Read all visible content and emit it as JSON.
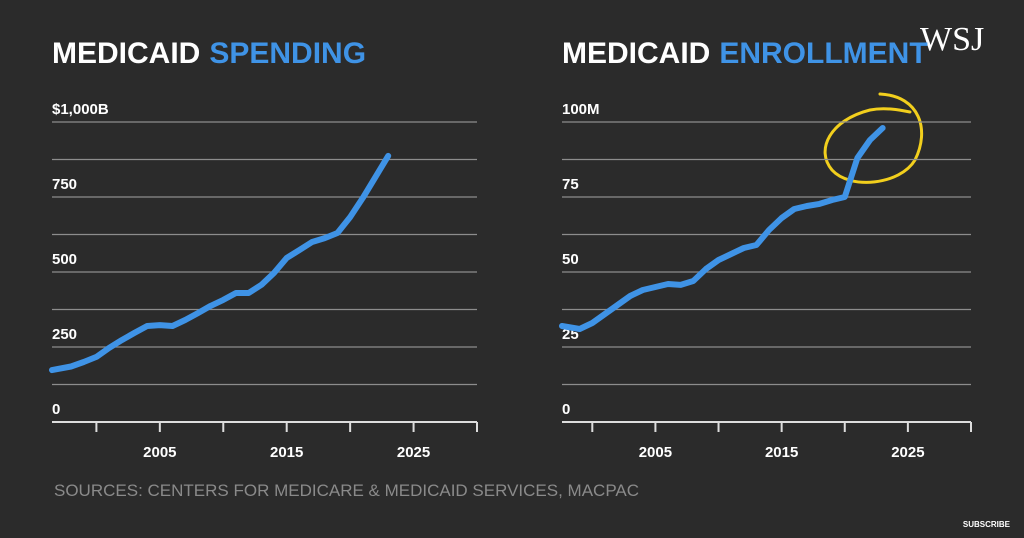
{
  "chart_data": [
    {
      "type": "line",
      "title": "MEDICAID",
      "title_highlight": "SPENDING",
      "color": "#3f93e6",
      "x": [
        1996.5,
        1998,
        1999,
        2000,
        2001,
        2002,
        2003,
        2004,
        2005,
        2006,
        2007,
        2008,
        2009,
        2010,
        2011,
        2012,
        2013,
        2014,
        2015,
        2016,
        2017,
        2018,
        2019,
        2020,
        2021,
        2022,
        2023
      ],
      "values": [
        173,
        185,
        200,
        217,
        247,
        273,
        297,
        320,
        323,
        320,
        340,
        363,
        387,
        407,
        430,
        430,
        457,
        497,
        547,
        573,
        600,
        613,
        630,
        683,
        747,
        817,
        887
      ],
      "xlim": [
        1996.5,
        2030
      ],
      "xticks": [
        2005,
        2015,
        2025
      ],
      "minor_xticks": [
        2000,
        2010,
        2020,
        2030
      ],
      "ylim": [
        0,
        1000
      ],
      "yticks": [
        0,
        250,
        500,
        750,
        {
          "value": 1000,
          "label": "$1,000B"
        }
      ],
      "minor_yticks": [
        125,
        375,
        625,
        875
      ],
      "grid": true
    },
    {
      "type": "line",
      "title": "MEDICAID",
      "title_highlight": "ENROLLMENT",
      "color": "#3f93e6",
      "x": [
        1997.6,
        1999,
        2000,
        2001,
        2002,
        2003,
        2004,
        2005,
        2006,
        2007,
        2008,
        2009,
        2010,
        2011,
        2012,
        2013,
        2014,
        2015,
        2016,
        2017,
        2018,
        2019,
        2020,
        2021,
        2022,
        2023
      ],
      "values": [
        32,
        31,
        33,
        36,
        39,
        42,
        44,
        45,
        46,
        45.7,
        47,
        51,
        54,
        56,
        58,
        59,
        64,
        68,
        71,
        72,
        72.7,
        74,
        75,
        88,
        94,
        98
      ],
      "xlim": [
        1997.6,
        2030
      ],
      "xticks": [
        2005,
        2015,
        2025
      ],
      "minor_xticks": [
        2000,
        2010,
        2020,
        2030
      ],
      "ylim": [
        0,
        100
      ],
      "yticks": [
        0,
        25,
        50,
        75,
        {
          "value": 100,
          "label": "100M"
        }
      ],
      "minor_yticks": [
        12.5,
        37.5,
        62.5,
        87.5
      ],
      "grid": true
    }
  ],
  "source": "SOURCES: CENTERS FOR MEDICARE & MEDICAID SERVICES, MACPAC",
  "logo": "WSJ",
  "subscribe": "SUBSCRIBE"
}
